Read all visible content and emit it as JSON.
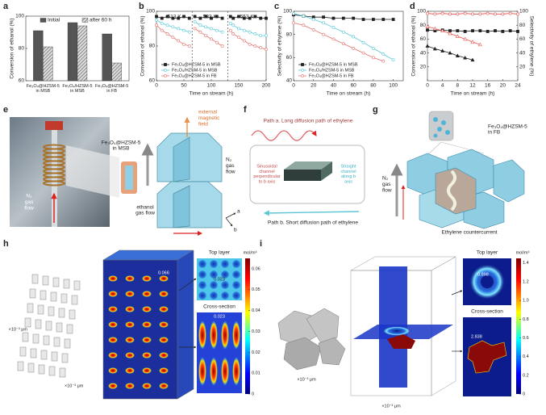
{
  "panel_labels": [
    "a",
    "b",
    "c",
    "d",
    "e",
    "f",
    "g",
    "h",
    "i"
  ],
  "chart_data": [
    {
      "type": "bar",
      "ylabel": "Conversion of ethanol (%)",
      "categories": [
        "Fe₃O₄@HZSM-5 in MSB",
        "Fe₃O₄/HZSM-5 in MSB",
        "Fe₃O₄@HZSM-5 in FB"
      ],
      "series": [
        {
          "name": "Initial",
          "color": "#555555",
          "pattern": "solid",
          "values": [
            91,
            96,
            89
          ]
        },
        {
          "name": "after 60 h",
          "color": "#999999",
          "pattern": "hatch",
          "values": [
            81,
            94,
            71
          ]
        }
      ],
      "ylim": [
        60,
        100
      ],
      "yticks": [
        60,
        80,
        100
      ],
      "legend": "upper"
    },
    {
      "type": "line",
      "ylabel": "Conversion of ethanol (%)",
      "xlabel": "Time on stream (h)",
      "x": [
        0,
        10,
        20,
        30,
        40,
        50,
        60,
        65,
        70,
        80,
        90,
        100,
        110,
        120,
        130,
        135,
        140,
        150,
        160,
        170,
        180,
        190,
        200
      ],
      "series": [
        {
          "name": "Fe₃O₄@HZSM-5 in MSB",
          "color": "#222222",
          "marker": "square",
          "filled": true,
          "values": [
            97,
            96,
            97,
            96,
            96,
            97,
            96,
            null,
            97,
            96,
            97,
            96,
            97,
            96,
            null,
            97,
            96,
            97,
            96,
            96,
            97,
            96,
            96
          ]
        },
        {
          "name": "Fe₃O₄/HZSM-5 in MSB",
          "color": "#55c8d8",
          "marker": "circle",
          "filled": false,
          "values": [
            95,
            93,
            92,
            91,
            90,
            89,
            88,
            null,
            94,
            92,
            91,
            90,
            89,
            88,
            null,
            93,
            92,
            90,
            89,
            88,
            87,
            86,
            86
          ]
        },
        {
          "name": "Fe₃O₄@HZSM-5 in FB",
          "color": "#e6706a",
          "marker": "circle",
          "filled": false,
          "values": [
            92,
            89,
            87,
            85,
            83,
            81,
            80,
            null,
            90,
            88,
            86,
            84,
            82,
            80,
            null,
            89,
            87,
            85,
            83,
            81,
            80,
            79,
            78
          ]
        }
      ],
      "vlines": [
        65,
        130
      ],
      "annotations": [
        "513 K",
        "533 K",
        "553 K"
      ],
      "xlim": [
        0,
        200
      ],
      "xticks": [
        0,
        50,
        100,
        150,
        200
      ],
      "ylim": [
        60,
        100
      ],
      "yticks": [
        60,
        80,
        100
      ],
      "legend": "lower left"
    },
    {
      "type": "line",
      "ylabel": "Selectivity of ethylene (%)",
      "xlabel": "Time on stream (h)",
      "x": [
        0,
        10,
        20,
        30,
        40,
        50,
        60,
        70,
        80,
        90,
        100
      ],
      "series": [
        {
          "name": "Fe₃O₄@HZSM-5 in MSB",
          "color": "#222222",
          "marker": "square",
          "filled": true,
          "values": [
            97,
            96,
            95,
            95,
            94,
            94,
            94,
            93,
            93,
            93,
            93
          ]
        },
        {
          "name": "Fe₃O₄/HZSM-5 in MSB",
          "color": "#55c8d8",
          "marker": "circle",
          "filled": false,
          "values": [
            98,
            96,
            93,
            90,
            86,
            82,
            78,
            73,
            68,
            63,
            58
          ]
        },
        {
          "name": "Fe₃O₄@HZSM-5 in FB",
          "color": "#e6706a",
          "marker": "circle",
          "filled": false,
          "values": [
            90,
            88,
            84,
            80,
            76,
            72,
            68,
            64,
            60,
            57,
            null
          ]
        }
      ],
      "xlim": [
        0,
        110
      ],
      "xticks": [
        0,
        20,
        40,
        60,
        80,
        100
      ],
      "ylim": [
        40,
        100
      ],
      "yticks": [
        40,
        60,
        80,
        100
      ],
      "legend": "lower left"
    },
    {
      "type": "line",
      "ylabel": "Conversion of ethanol (%)",
      "y2label": "Selectivity of ethylene (%)",
      "xlabel": "Time on stream (h)",
      "x": [
        0,
        2,
        4,
        6,
        8,
        10,
        12,
        14,
        16,
        18,
        20,
        22,
        24
      ],
      "series": [
        {
          "color": "#222222",
          "marker": "square",
          "filled": true,
          "values": [
            73,
            72,
            73,
            72,
            72,
            71,
            72,
            72,
            71,
            72,
            71,
            72,
            71
          ]
        },
        {
          "color": "#e6504b",
          "marker": "circle",
          "filled": false,
          "axis": "y2",
          "values": [
            97,
            96,
            97,
            96,
            96,
            97,
            96,
            96,
            97,
            96,
            96,
            97,
            96
          ]
        },
        {
          "color": "#222222",
          "marker": "triangle",
          "filled": true,
          "values": [
            50,
            46,
            43,
            40,
            36,
            33,
            30,
            null,
            null,
            null,
            null,
            null,
            null
          ]
        },
        {
          "color": "#e6504b",
          "marker": "triangle",
          "filled": false,
          "axis": "y2",
          "values": [
            78,
            75,
            72,
            68,
            64,
            60,
            56,
            52,
            null,
            null,
            null,
            null,
            null
          ]
        }
      ],
      "xlim": [
        0,
        24
      ],
      "xticks": [
        0,
        4,
        8,
        12,
        16,
        20,
        24
      ],
      "ylim": [
        0,
        100
      ],
      "yticks": [
        20,
        40,
        60,
        80,
        100
      ],
      "y2lim": [
        0,
        100
      ],
      "y2ticks": [
        20,
        40,
        60,
        80,
        100
      ]
    }
  ],
  "diagrams": {
    "e": {
      "sample": "Fe₃O₄@HZSM-5 in MSB",
      "magnet": "external magnetic field",
      "n2_photo": "N₂ gas flow",
      "n2_crystal": "N₂ gas flow",
      "ethanol": "ethanol gas flow",
      "axis_a": "a",
      "axis_b": "b"
    },
    "f": {
      "path_a": "Path a. Long diffusion path of ethylene",
      "sinusoidal": "Sinusoidal channel perpendicular to b axis",
      "straight": "Straight channel along b axis",
      "path_b": "Path b. Short diffusion path of ethylene"
    },
    "g": {
      "sample": "Fe₃O₄@HZSM-5 in FB",
      "n2": "N₂ gas flow",
      "counter": "Ethylene countercurrent"
    },
    "h": {
      "unit": "×10⁻³ μm",
      "top": "Top layer",
      "cross": "Cross-section",
      "cbar_unit": "mol/m³",
      "stack_value": "0.066",
      "top_value": "0.023",
      "cross_value": "0.023",
      "cbar_lim": [
        0,
        0.065
      ],
      "cbar_ticks": [
        0,
        0.01,
        0.02,
        0.03,
        0.04,
        0.05,
        0.06
      ]
    },
    "i": {
      "unit": "×10⁻³ μm",
      "top": "Top layer",
      "cross": "Cross-section",
      "cbar_unit": "mol/m³",
      "top_value": "0.898",
      "cross_value": "2.838",
      "cbar_lim": [
        0,
        1.45
      ],
      "cbar_ticks": [
        0,
        0.2,
        0.4,
        0.6,
        0.8,
        {
          "value": 1,
          "label": "1.0"
        },
        1.2,
        1.4
      ]
    }
  }
}
